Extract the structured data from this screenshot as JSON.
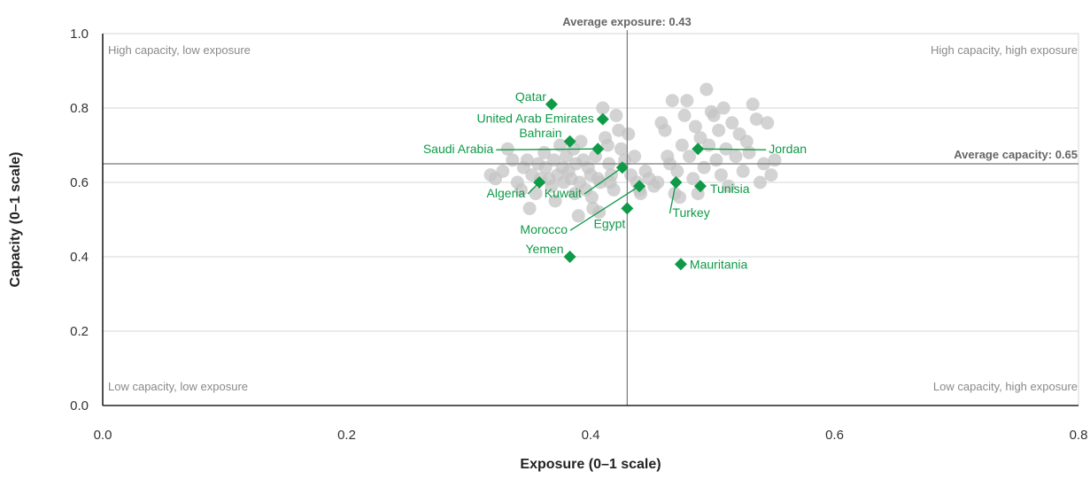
{
  "colors": {
    "accent": "#0f9a48",
    "other_points": "#c4c4c4",
    "gridline": "#d4d4d4",
    "reference_line": "#777777",
    "axis": "#222222"
  },
  "chart_data": {
    "type": "scatter",
    "xlabel": "Exposure (0–1 scale)",
    "ylabel": "Capacity (0–1 scale)",
    "xlim": [
      0,
      0.8
    ],
    "ylim": [
      0,
      1.0
    ],
    "x_ticks": [
      0.0,
      0.2,
      0.4,
      0.6,
      0.8
    ],
    "x_tick_labels": [
      "0.0",
      "0.2",
      "0.4",
      "0.6",
      "0.8"
    ],
    "y_ticks": [
      0.0,
      0.2,
      0.4,
      0.6,
      0.8,
      1.0
    ],
    "y_tick_labels": [
      "0.0",
      "0.2",
      "0.4",
      "0.6",
      "0.8",
      "1.0"
    ],
    "grid": "horizontal",
    "reference_lines": {
      "average_exposure": {
        "value": 0.43,
        "label": "Average exposure: 0.43"
      },
      "average_capacity": {
        "value": 0.65,
        "label": "Average capacity: 0.65"
      }
    },
    "quadrant_labels": {
      "top_left": "High capacity, low exposure",
      "top_right": "High capacity, high exposure",
      "bottom_left": "Low capacity, low exposure",
      "bottom_right": "Low capacity, high exposure"
    },
    "highlighted_series": [
      {
        "name": "Qatar",
        "x": 0.368,
        "y": 0.81
      },
      {
        "name": "United Arab Emirates",
        "x": 0.41,
        "y": 0.77
      },
      {
        "name": "Bahrain",
        "x": 0.383,
        "y": 0.71
      },
      {
        "name": "Saudi Arabia",
        "x": 0.406,
        "y": 0.69
      },
      {
        "name": "Jordan",
        "x": 0.488,
        "y": 0.69
      },
      {
        "name": "Kuwait",
        "x": 0.426,
        "y": 0.64
      },
      {
        "name": "Algeria",
        "x": 0.358,
        "y": 0.6
      },
      {
        "name": "Morocco",
        "x": 0.44,
        "y": 0.59
      },
      {
        "name": "Turkey",
        "x": 0.47,
        "y": 0.6
      },
      {
        "name": "Tunisia",
        "x": 0.49,
        "y": 0.59
      },
      {
        "name": "Egypt",
        "x": 0.43,
        "y": 0.53
      },
      {
        "name": "Yemen",
        "x": 0.383,
        "y": 0.4
      },
      {
        "name": "Mauritania",
        "x": 0.474,
        "y": 0.38
      }
    ],
    "other_points": [
      [
        0.318,
        0.62
      ],
      [
        0.322,
        0.61
      ],
      [
        0.328,
        0.63
      ],
      [
        0.332,
        0.69
      ],
      [
        0.336,
        0.66
      ],
      [
        0.34,
        0.6
      ],
      [
        0.343,
        0.58
      ],
      [
        0.345,
        0.64
      ],
      [
        0.348,
        0.66
      ],
      [
        0.35,
        0.53
      ],
      [
        0.352,
        0.62
      ],
      [
        0.355,
        0.57
      ],
      [
        0.357,
        0.65
      ],
      [
        0.359,
        0.61
      ],
      [
        0.362,
        0.68
      ],
      [
        0.363,
        0.64
      ],
      [
        0.366,
        0.61
      ],
      [
        0.368,
        0.59
      ],
      [
        0.37,
        0.66
      ],
      [
        0.371,
        0.55
      ],
      [
        0.373,
        0.62
      ],
      [
        0.375,
        0.7
      ],
      [
        0.377,
        0.64
      ],
      [
        0.378,
        0.6
      ],
      [
        0.38,
        0.67
      ],
      [
        0.382,
        0.63
      ],
      [
        0.384,
        0.61
      ],
      [
        0.386,
        0.69
      ],
      [
        0.388,
        0.65
      ],
      [
        0.39,
        0.51
      ],
      [
        0.391,
        0.6
      ],
      [
        0.392,
        0.71
      ],
      [
        0.394,
        0.66
      ],
      [
        0.396,
        0.58
      ],
      [
        0.398,
        0.64
      ],
      [
        0.4,
        0.62
      ],
      [
        0.401,
        0.56
      ],
      [
        0.402,
        0.53
      ],
      [
        0.404,
        0.67
      ],
      [
        0.406,
        0.61
      ],
      [
        0.407,
        0.52
      ],
      [
        0.408,
        0.6
      ],
      [
        0.41,
        0.8
      ],
      [
        0.412,
        0.72
      ],
      [
        0.414,
        0.7
      ],
      [
        0.415,
        0.65
      ],
      [
        0.417,
        0.62
      ],
      [
        0.419,
        0.58
      ],
      [
        0.421,
        0.78
      ],
      [
        0.423,
        0.74
      ],
      [
        0.425,
        0.69
      ],
      [
        0.428,
        0.66
      ],
      [
        0.431,
        0.73
      ],
      [
        0.433,
        0.62
      ],
      [
        0.436,
        0.67
      ],
      [
        0.438,
        0.6
      ],
      [
        0.441,
        0.57
      ],
      [
        0.445,
        0.63
      ],
      [
        0.448,
        0.61
      ],
      [
        0.452,
        0.59
      ],
      [
        0.455,
        0.6
      ],
      [
        0.458,
        0.76
      ],
      [
        0.461,
        0.74
      ],
      [
        0.463,
        0.67
      ],
      [
        0.465,
        0.65
      ],
      [
        0.467,
        0.82
      ],
      [
        0.469,
        0.57
      ],
      [
        0.471,
        0.63
      ],
      [
        0.473,
        0.56
      ],
      [
        0.475,
        0.7
      ],
      [
        0.477,
        0.78
      ],
      [
        0.479,
        0.82
      ],
      [
        0.481,
        0.67
      ],
      [
        0.484,
        0.61
      ],
      [
        0.486,
        0.75
      ],
      [
        0.488,
        0.57
      ],
      [
        0.49,
        0.72
      ],
      [
        0.493,
        0.64
      ],
      [
        0.495,
        0.85
      ],
      [
        0.497,
        0.7
      ],
      [
        0.499,
        0.79
      ],
      [
        0.501,
        0.78
      ],
      [
        0.503,
        0.66
      ],
      [
        0.505,
        0.74
      ],
      [
        0.507,
        0.62
      ],
      [
        0.509,
        0.8
      ],
      [
        0.511,
        0.69
      ],
      [
        0.513,
        0.59
      ],
      [
        0.516,
        0.76
      ],
      [
        0.519,
        0.67
      ],
      [
        0.522,
        0.73
      ],
      [
        0.525,
        0.63
      ],
      [
        0.528,
        0.71
      ],
      [
        0.53,
        0.68
      ],
      [
        0.533,
        0.81
      ],
      [
        0.536,
        0.77
      ],
      [
        0.539,
        0.6
      ],
      [
        0.542,
        0.65
      ],
      [
        0.545,
        0.76
      ],
      [
        0.548,
        0.62
      ],
      [
        0.551,
        0.66
      ],
      [
        0.44,
        0.58
      ],
      [
        0.387,
        0.57
      ],
      [
        0.416,
        0.6
      ]
    ]
  }
}
